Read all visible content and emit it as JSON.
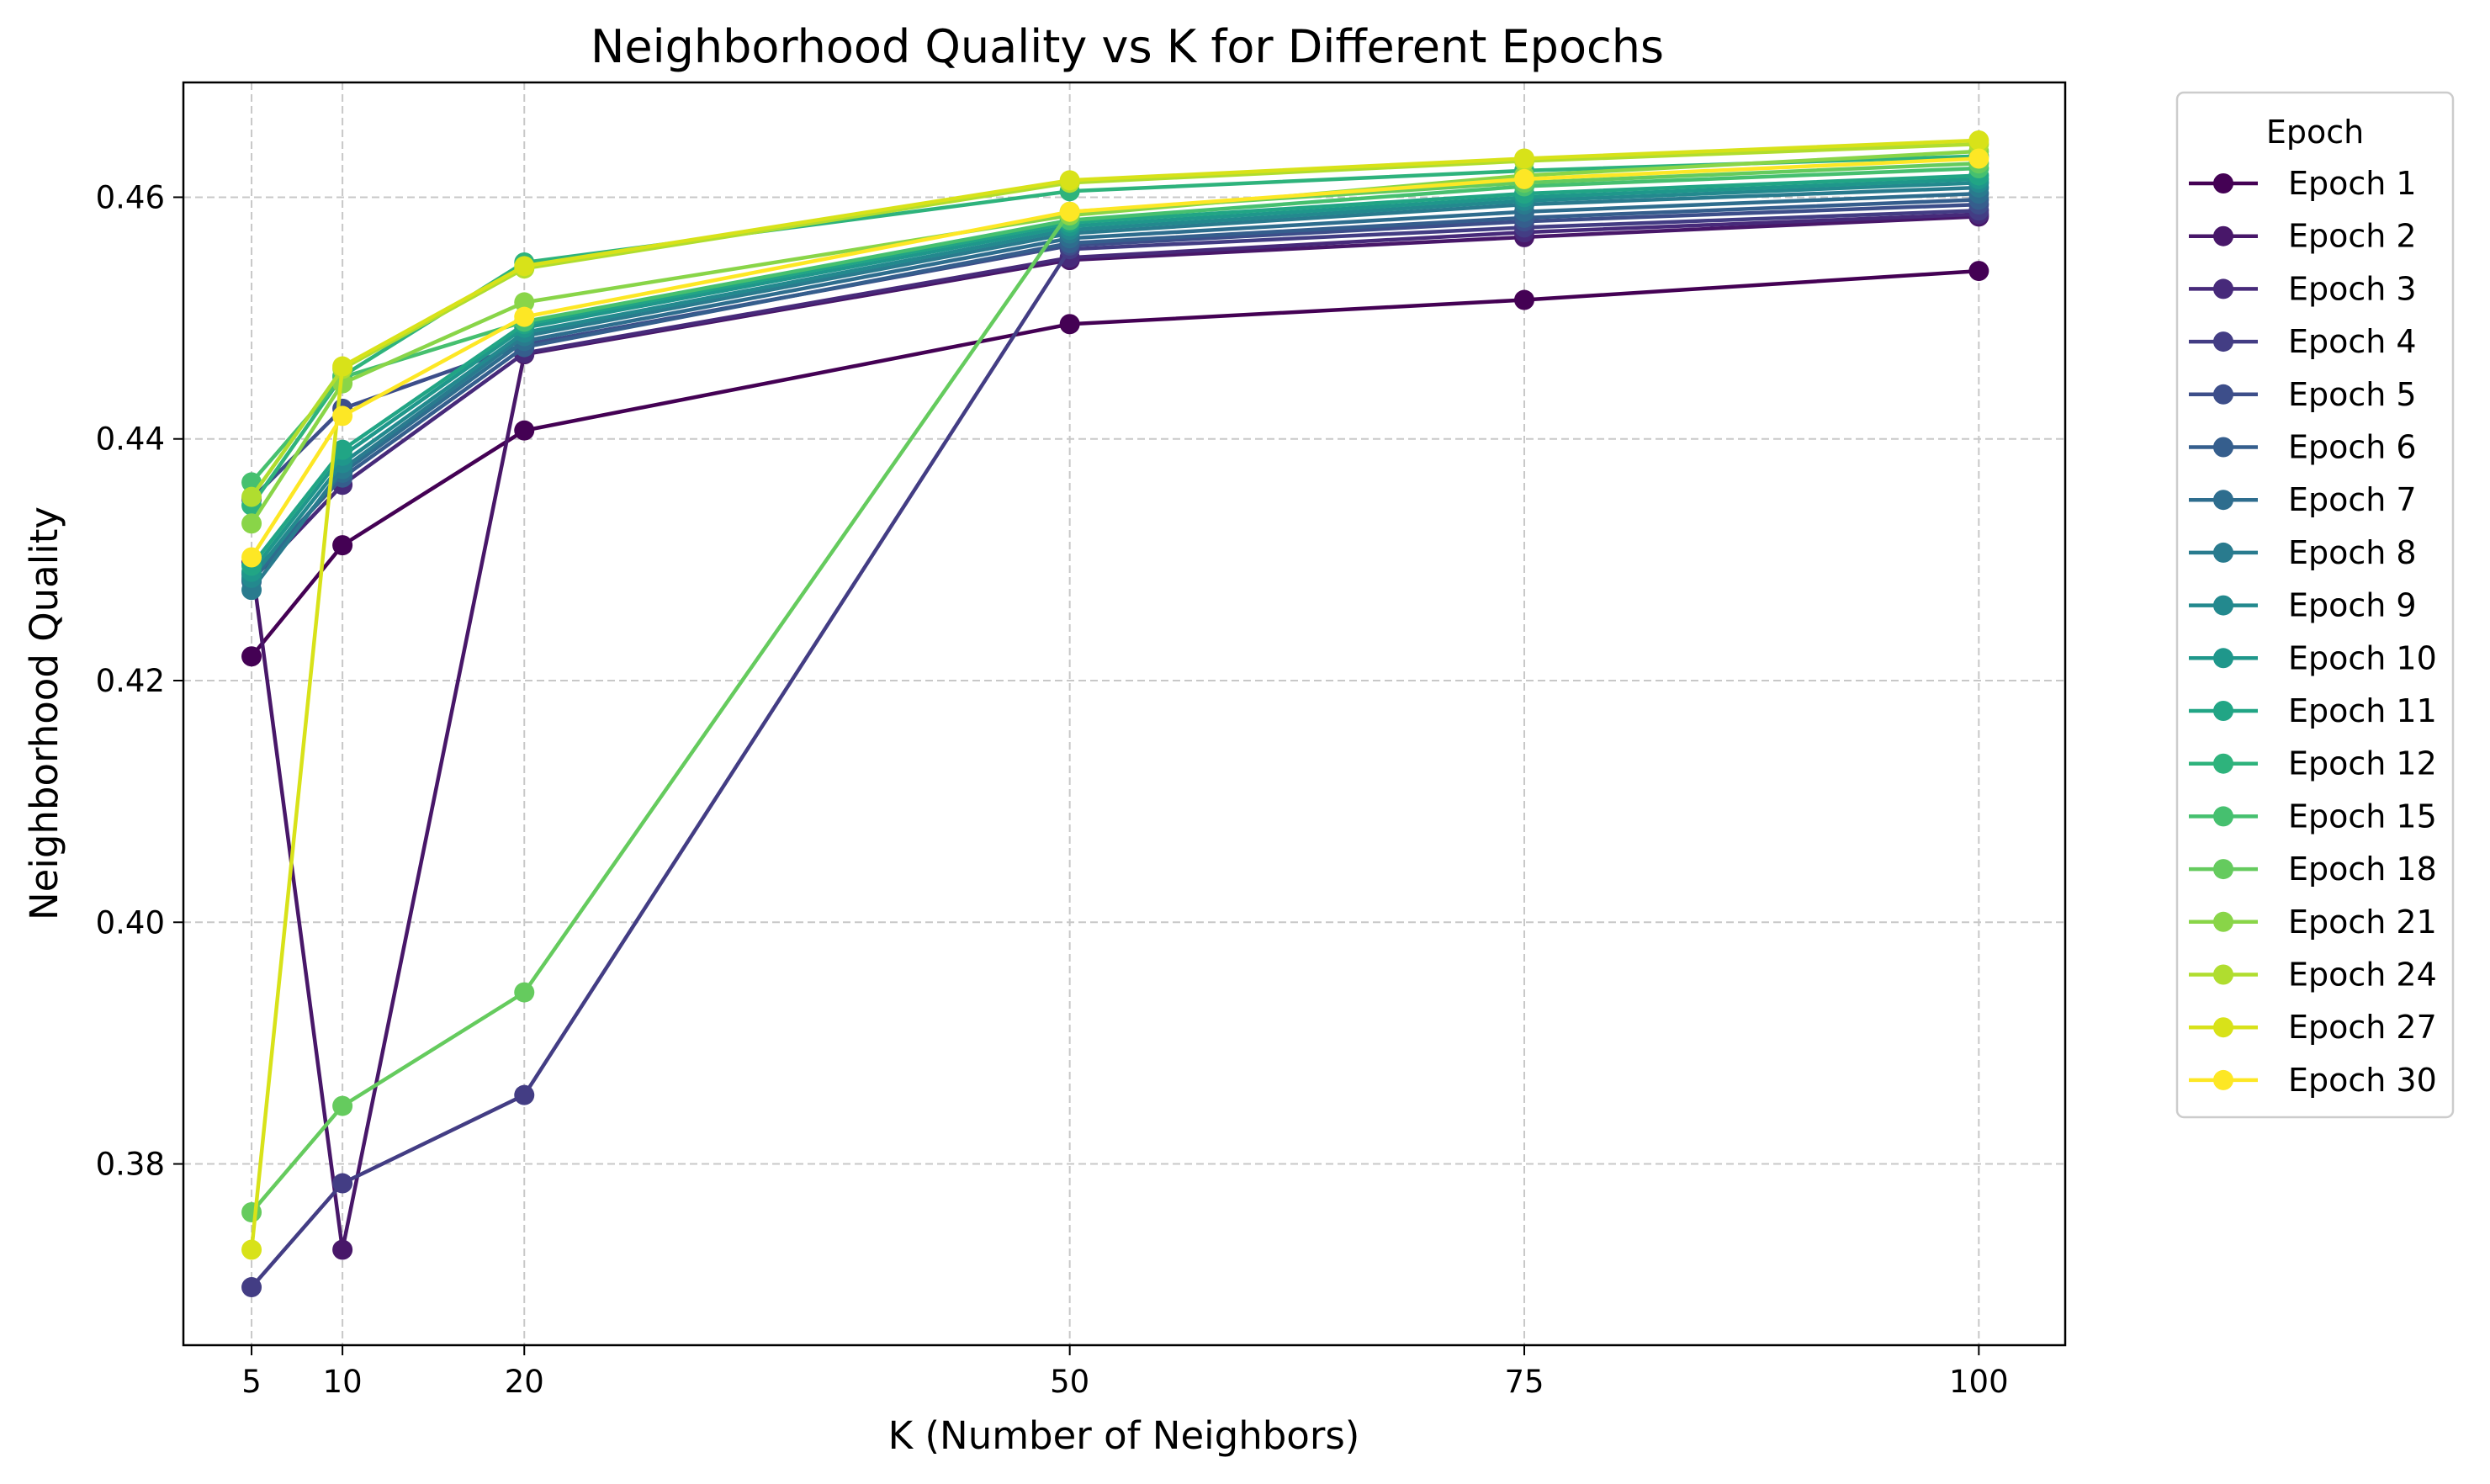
{
  "chart_data": {
    "type": "line",
    "title": "Neighborhood Quality vs K for Different Epochs",
    "xlabel": "K (Number of Neighbors)",
    "ylabel": "Neighborhood Quality",
    "x": [
      5,
      10,
      20,
      50,
      75,
      100
    ],
    "xticks": [
      "5",
      "10",
      "20",
      "50",
      "75",
      "100"
    ],
    "yticks": [
      "0.38",
      "0.40",
      "0.42",
      "0.44",
      "0.46"
    ],
    "ytick_values": [
      0.38,
      0.4,
      0.42,
      0.44,
      0.46
    ],
    "xlim": [
      1.25,
      104.75
    ],
    "ylim": [
      0.365,
      0.4695
    ],
    "grid": true,
    "legend_title": "Epoch",
    "legend_position": "outside-right",
    "series": [
      {
        "name": "Epoch 1",
        "color": "#440154",
        "values": [
          0.422,
          0.4312,
          0.4407,
          0.4495,
          0.4515,
          0.4539
        ]
      },
      {
        "name": "Epoch 2",
        "color": "#481769",
        "values": [
          0.4298,
          0.3729,
          0.447,
          0.4548,
          0.4567,
          0.4584
        ]
      },
      {
        "name": "Epoch 3",
        "color": "#472a7a",
        "values": [
          0.4283,
          0.4362,
          0.4471,
          0.455,
          0.4571,
          0.4586
        ]
      },
      {
        "name": "Epoch 4",
        "color": "#433d84",
        "values": [
          0.3698,
          0.3784,
          0.3857,
          0.4557,
          0.4575,
          0.4589
        ]
      },
      {
        "name": "Epoch 5",
        "color": "#3d4e8a",
        "values": [
          0.435,
          0.4425,
          0.4478,
          0.456,
          0.458,
          0.4594
        ]
      },
      {
        "name": "Epoch 6",
        "color": "#355e8d",
        "values": [
          0.4288,
          0.4368,
          0.4476,
          0.4562,
          0.4583,
          0.4598
        ]
      },
      {
        "name": "Epoch 7",
        "color": "#2e6d8e",
        "values": [
          0.4282,
          0.4372,
          0.4481,
          0.4566,
          0.4588,
          0.4603
        ]
      },
      {
        "name": "Epoch 8",
        "color": "#297b8e",
        "values": [
          0.4275,
          0.4375,
          0.4485,
          0.457,
          0.4594,
          0.4608
        ]
      },
      {
        "name": "Epoch 9",
        "color": "#23898e",
        "values": [
          0.4285,
          0.438,
          0.4488,
          0.4573,
          0.4597,
          0.4612
        ]
      },
      {
        "name": "Epoch 10",
        "color": "#1f978b",
        "values": [
          0.429,
          0.4386,
          0.4492,
          0.4576,
          0.46,
          0.4615
        ]
      },
      {
        "name": "Epoch 11",
        "color": "#21a585",
        "values": [
          0.4295,
          0.4391,
          0.4495,
          0.4579,
          0.4603,
          0.4618
        ]
      },
      {
        "name": "Epoch 12",
        "color": "#2eb37c",
        "values": [
          0.4345,
          0.4452,
          0.4546,
          0.4605,
          0.4622,
          0.4634
        ]
      },
      {
        "name": "Epoch 15",
        "color": "#46c06f",
        "values": [
          0.4364,
          0.4451,
          0.4497,
          0.4581,
          0.4609,
          0.4624
        ]
      },
      {
        "name": "Epoch 18",
        "color": "#65cb5e",
        "values": [
          0.376,
          0.3848,
          0.3942,
          0.4588,
          0.4612,
          0.4628
        ]
      },
      {
        "name": "Epoch 21",
        "color": "#89d548",
        "values": [
          0.433,
          0.4446,
          0.4513,
          0.4585,
          0.4618,
          0.4638
        ]
      },
      {
        "name": "Epoch 24",
        "color": "#b0dd2f",
        "values": [
          0.4352,
          0.4458,
          0.4541,
          0.4612,
          0.463,
          0.4644
        ]
      },
      {
        "name": "Epoch 27",
        "color": "#d8e219",
        "values": [
          0.3729,
          0.446,
          0.4543,
          0.4614,
          0.4632,
          0.4647
        ]
      },
      {
        "name": "Epoch 30",
        "color": "#fde725",
        "values": [
          0.4302,
          0.4419,
          0.4501,
          0.4588,
          0.4615,
          0.4632
        ]
      }
    ]
  }
}
